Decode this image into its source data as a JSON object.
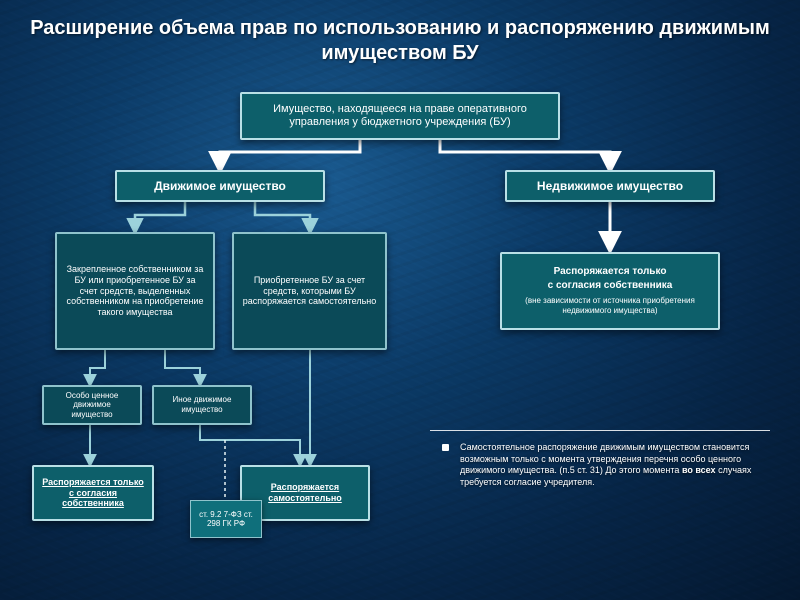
{
  "title": "Расширение объема прав по использованию и распоряжению движимым имуществом БУ",
  "title_fontsize": 20,
  "bg": {
    "background_color_center": "#1a5a8f",
    "background_color_edge": "#041830"
  },
  "box_common": {
    "bg": "#0d5f6a",
    "border_color": "#b9e0e6",
    "border_width": 2,
    "radius": 2
  },
  "secondary_box": {
    "bg": "#0b4a58",
    "border_color": "#8fc3cc"
  },
  "arrow_color": "#9cd2db",
  "arrow_white": "#ffffff",
  "dashed_color": "#e8f4f6",
  "divider_color": "#ffffff",
  "boxes": {
    "root": {
      "text": "Имущество, находящееся на праве оперативного управления у бюджетного учреждения (БУ)",
      "fontsize": 11
    },
    "mov": {
      "text": "Движимое имущество",
      "fontsize": 12,
      "bold": true
    },
    "immov": {
      "text": "Недвижимое имущество",
      "fontsize": 12,
      "bold": true
    },
    "mov_a": {
      "text": "Закрепленное собственником за БУ или приобретенное БУ за счет средств, выделенных собственником на приобретение такого имущества",
      "fontsize": 9
    },
    "mov_b": {
      "text": "Приобретенное БУ за счет средств, которыми БУ распоряжается самостоятельно",
      "fontsize": 9
    },
    "ocdv": {
      "text": "Особо ценное движимое имущество",
      "fontsize": 8
    },
    "inoe": {
      "text": "Иное движимое имущество",
      "fontsize": 8
    },
    "owner_only": {
      "text": "Распоряжается только с согласия собственника",
      "fontsize": 9,
      "underline": true
    },
    "self": {
      "text": "Распоряжается самостоятельно",
      "fontsize": 9,
      "underline": true
    }
  },
  "immov_note": {
    "line1": "Распоряжается только",
    "line2": "с согласия собственника",
    "line3": "(вне зависимости от источника приобретения недвижимого имущества)",
    "fontsize_bold": 10,
    "fontsize_small": 8
  },
  "side_note": {
    "text": "Самостоятельное распоряжение движимым имуществом становится возможным только с момента утверждения перечня особо ценного движимого имущества. (п.5 ст. 31) До этого момента <b>во всех</b> случаях требуется согласие учредителя.",
    "fontsize": 9,
    "bullet_color": "#ffffff"
  },
  "citations": {
    "c1": {
      "text": "ст. 9.2 7-ФЗ ст. 298 ГК РФ",
      "bg": "#0f6f7b",
      "fontsize": 8
    }
  }
}
